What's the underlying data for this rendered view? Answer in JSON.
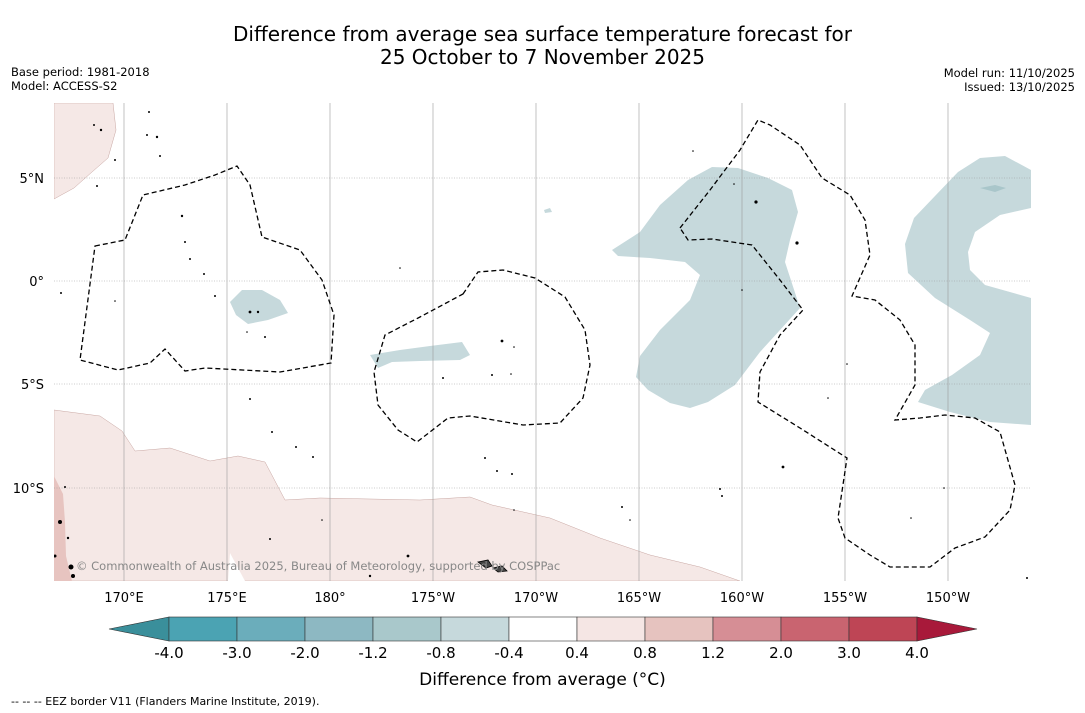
{
  "title": {
    "line1": "Difference from average sea surface temperature forecast for",
    "line2": "25 October to 7 November 2025"
  },
  "meta_left": {
    "base_period": "Base period: 1981-2018",
    "model": "Model: ACCESS-S2"
  },
  "meta_right": {
    "model_run": "Model run: 11/10/2025",
    "issued": "Issued: 13/10/2025"
  },
  "map": {
    "lat_labels": [
      "5°N",
      "0°",
      "5°S",
      "10°S"
    ],
    "lon_labels": [
      "170°E",
      "175°E",
      "180°",
      "175°W",
      "170°W",
      "165°W",
      "160°W",
      "155°W",
      "150°W"
    ],
    "copyright": "© Commonwealth of Australia 2025, Bureau of Meteorology, supported by COSPPac"
  },
  "colorbar": {
    "ticks": [
      "-4.0",
      "-3.0",
      "-2.0",
      "-1.2",
      "-0.8",
      "-0.4",
      "0.4",
      "0.8",
      "1.2",
      "2.0",
      "3.0",
      "4.0"
    ],
    "colors": [
      "#3a8f9b",
      "#4ba3b3",
      "#6badbb",
      "#8db8c2",
      "#a9c8cb",
      "#c6d9dc",
      "#ffffff",
      "#f5e6e4",
      "#e6c3bf",
      "#d68e95",
      "#c96470",
      "#be4555",
      "#a8193a"
    ],
    "label": "Difference from average (°C)"
  },
  "footer": "--  --  -- EEZ border V11 (Flanders Marine Institute, 2019)."
}
